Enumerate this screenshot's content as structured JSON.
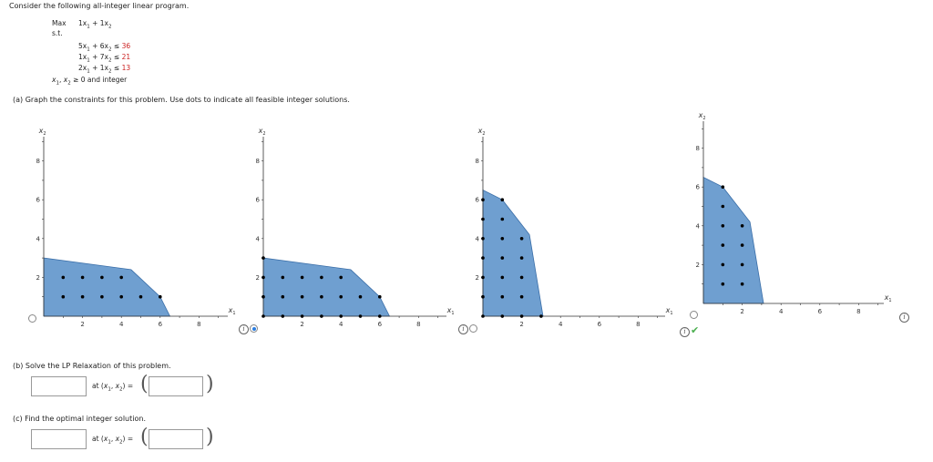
{
  "intro": "Consider the following all-integer linear program.",
  "problem": {
    "max": "Max",
    "objective": [
      "1x",
      "1",
      " + ",
      "1x",
      "2"
    ],
    "st": "s.t.",
    "constraints": [
      {
        "a": "5x",
        "b": "6x",
        "rel": "≤",
        "rhs": "36"
      },
      {
        "a": "1x",
        "b": "7x",
        "rel": "≤",
        "rhs": "21"
      },
      {
        "a": "2x",
        "b": "1x",
        "rel": "≤",
        "rhs": "13"
      }
    ],
    "nonneg": "≥ 0 and integer"
  },
  "part_a": "(a)  Graph the constraints for this problem. Use dots to indicate all feasible integer solutions.",
  "part_b": "(b)  Solve the LP Relaxation of this problem.",
  "part_c": "(c)  Find the optimal integer solution.",
  "at_label": "at",
  "graphs": [
    {
      "x_ticks": [
        "2",
        "4",
        "6",
        "8"
      ],
      "y_ticks": [
        "2",
        "4",
        "6",
        "8"
      ],
      "polygon": [
        [
          0,
          0
        ],
        [
          0,
          3
        ],
        [
          4.5,
          2.4
        ],
        [
          6,
          1
        ],
        [
          6.5,
          0
        ]
      ],
      "dots": [
        [
          1,
          1
        ],
        [
          2,
          1
        ],
        [
          3,
          1
        ],
        [
          4,
          1
        ],
        [
          5,
          1
        ],
        [
          6,
          1
        ],
        [
          1,
          2
        ],
        [
          2,
          2
        ],
        [
          3,
          2
        ],
        [
          4,
          2
        ]
      ],
      "selected": false,
      "correct": false
    },
    {
      "x_ticks": [
        "2",
        "4",
        "6",
        "8"
      ],
      "y_ticks": [
        "2",
        "4",
        "6",
        "8"
      ],
      "polygon": [
        [
          0,
          0
        ],
        [
          0,
          3
        ],
        [
          4.5,
          2.4
        ],
        [
          6,
          1
        ],
        [
          6.5,
          0
        ]
      ],
      "dots": [
        [
          0,
          0
        ],
        [
          1,
          0
        ],
        [
          2,
          0
        ],
        [
          3,
          0
        ],
        [
          4,
          0
        ],
        [
          5,
          0
        ],
        [
          6,
          0
        ],
        [
          0,
          1
        ],
        [
          1,
          1
        ],
        [
          2,
          1
        ],
        [
          3,
          1
        ],
        [
          4,
          1
        ],
        [
          5,
          1
        ],
        [
          6,
          1
        ],
        [
          0,
          2
        ],
        [
          1,
          2
        ],
        [
          2,
          2
        ],
        [
          3,
          2
        ],
        [
          4,
          2
        ],
        [
          0,
          3
        ]
      ],
      "selected": true,
      "correct": false
    },
    {
      "x_ticks": [
        "2",
        "4",
        "6",
        "8"
      ],
      "y_ticks": [
        "2",
        "4",
        "6",
        "8"
      ],
      "polygon": [
        [
          0,
          0
        ],
        [
          0,
          6.5
        ],
        [
          1,
          6
        ],
        [
          2.4,
          4.2
        ],
        [
          3.1,
          0
        ]
      ],
      "dots": [
        [
          0,
          0
        ],
        [
          1,
          0
        ],
        [
          2,
          0
        ],
        [
          3,
          0
        ],
        [
          0,
          1
        ],
        [
          1,
          1
        ],
        [
          2,
          1
        ],
        [
          0,
          2
        ],
        [
          1,
          2
        ],
        [
          2,
          2
        ],
        [
          0,
          3
        ],
        [
          1,
          3
        ],
        [
          2,
          3
        ],
        [
          0,
          4
        ],
        [
          1,
          4
        ],
        [
          2,
          4
        ],
        [
          0,
          5
        ],
        [
          1,
          5
        ],
        [
          0,
          6
        ],
        [
          1,
          6
        ]
      ],
      "selected": false,
      "correct": false
    },
    {
      "x_ticks": [
        "2",
        "4",
        "6",
        "8"
      ],
      "y_ticks": [
        "2",
        "4",
        "6",
        "8"
      ],
      "polygon": [
        [
          0,
          0
        ],
        [
          0,
          6.5
        ],
        [
          1,
          6
        ],
        [
          2.4,
          4.2
        ],
        [
          3.1,
          0
        ]
      ],
      "dots": [
        [
          1,
          1
        ],
        [
          2,
          1
        ],
        [
          1,
          2
        ],
        [
          2,
          2
        ],
        [
          1,
          3
        ],
        [
          2,
          3
        ],
        [
          1,
          4
        ],
        [
          2,
          4
        ],
        [
          1,
          5
        ],
        [
          1,
          6
        ]
      ],
      "selected": false,
      "correct": true
    }
  ],
  "axis_x": "x",
  "axis_y": "x",
  "sub1": "1",
  "sub2": "2",
  "colors": {
    "fill": "#6f9fd0",
    "stroke": "#3a6ea8",
    "constraint_red": "#cc2222",
    "check": "#4caf50",
    "radio": "#2a7de1"
  }
}
